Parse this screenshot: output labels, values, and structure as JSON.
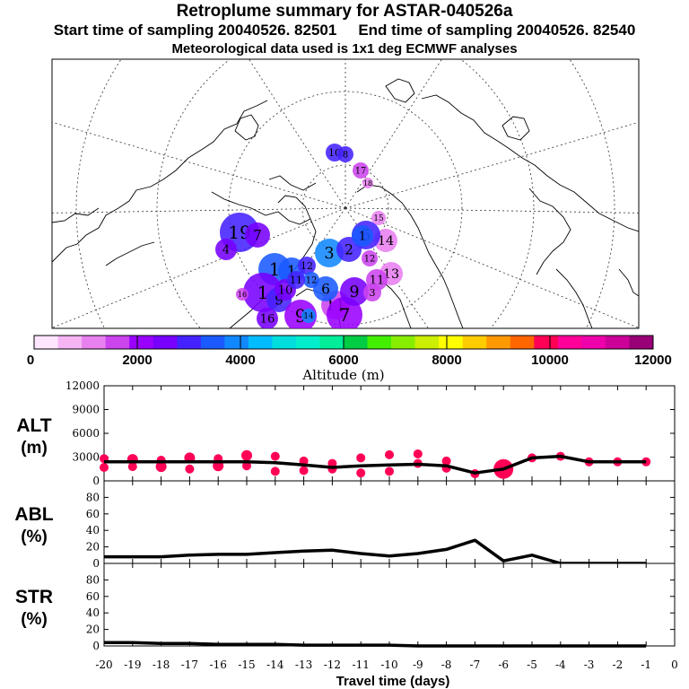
{
  "header": {
    "title": "Retroplume summary for ASTAR-040526a",
    "start_label": "Start time of sampling 20040526. 82501",
    "end_label": "End time of sampling 20040526. 82540",
    "met_label": "Meteorological data used is 1x1 deg ECMWF analyses"
  },
  "colorbar": {
    "label": "Altitude (m)",
    "tick_labels": [
      "0",
      "2000",
      "4000",
      "6000",
      "8000",
      "10000",
      "12000"
    ],
    "colors": [
      "#ffe6ff",
      "#f5b5f5",
      "#e880f0",
      "#cc44ee",
      "#9900ff",
      "#7700ff",
      "#4422ff",
      "#1a5aff",
      "#1188ff",
      "#00bbff",
      "#00dddd",
      "#00eecc",
      "#00ee99",
      "#00cc44",
      "#44ee00",
      "#88ee00",
      "#ccee00",
      "#ffff00",
      "#ffcc00",
      "#ff9900",
      "#ff6600",
      "#ff0055",
      "#ff0099",
      "#ee00aa",
      "#cc0099",
      "#990077"
    ]
  },
  "map": {
    "markers": [
      "19",
      "7",
      "4",
      "1",
      "1",
      "12",
      "1",
      "9",
      "10",
      "9",
      "16",
      "11",
      "6",
      "7",
      "3",
      "14",
      "13",
      "11",
      "12",
      "2",
      "9",
      "10",
      "15",
      "17",
      "18",
      "8",
      "5",
      "1",
      "16",
      "14",
      "3",
      "12",
      "11"
    ]
  },
  "chart_data": [
    {
      "type": "line",
      "name": "ALT",
      "ylabel": "ALT (m)",
      "ylabel_lines": [
        "ALT",
        "(m)"
      ],
      "ylim": [
        0,
        12000
      ],
      "y_ticks": [
        "0",
        "3000",
        "6000",
        "9000",
        "12000"
      ],
      "x": [
        -20,
        -19,
        -18,
        -17,
        -16,
        -15,
        -14,
        -13,
        -12,
        -11,
        -10,
        -9,
        -8,
        -7,
        -6,
        -5,
        -4,
        -3,
        -2,
        -1
      ],
      "values": [
        2400,
        2400,
        2400,
        2400,
        2400,
        2400,
        2300,
        2000,
        1700,
        1900,
        2000,
        2100,
        1900,
        1000,
        1500,
        2900,
        3100,
        2400,
        2400,
        2400
      ],
      "scatter": [
        {
          "x": -20,
          "y": 2800
        },
        {
          "x": -20,
          "y": 1700
        },
        {
          "x": -19,
          "y": 2700
        },
        {
          "x": -19,
          "y": 1800
        },
        {
          "x": -18,
          "y": 2600
        },
        {
          "x": -18,
          "y": 1800
        },
        {
          "x": -17,
          "y": 2900
        },
        {
          "x": -17,
          "y": 1500
        },
        {
          "x": -16,
          "y": 2800
        },
        {
          "x": -16,
          "y": 1900
        },
        {
          "x": -15,
          "y": 3200
        },
        {
          "x": -15,
          "y": 1900
        },
        {
          "x": -14,
          "y": 3100
        },
        {
          "x": -14,
          "y": 1200
        },
        {
          "x": -13,
          "y": 2500
        },
        {
          "x": -13,
          "y": 1300
        },
        {
          "x": -12,
          "y": 2200
        },
        {
          "x": -12,
          "y": 1500
        },
        {
          "x": -11,
          "y": 2900
        },
        {
          "x": -11,
          "y": 1000
        },
        {
          "x": -10,
          "y": 3300
        },
        {
          "x": -10,
          "y": 1200
        },
        {
          "x": -9,
          "y": 3400
        },
        {
          "x": -9,
          "y": 2200
        },
        {
          "x": -8,
          "y": 2500
        },
        {
          "x": -8,
          "y": 1600
        },
        {
          "x": -7,
          "y": 900
        },
        {
          "x": -6,
          "y": 1500
        },
        {
          "x": -5,
          "y": 2900
        },
        {
          "x": -4,
          "y": 3100
        },
        {
          "x": -3,
          "y": 2400
        },
        {
          "x": -2,
          "y": 2400
        },
        {
          "x": -1,
          "y": 2400
        }
      ]
    },
    {
      "type": "line",
      "name": "ABL",
      "ylabel": "ABL (%)",
      "ylabel_lines": [
        "ABL",
        "(%)"
      ],
      "ylim": [
        0,
        100
      ],
      "y_ticks": [
        "0",
        "20",
        "40",
        "60",
        "80"
      ],
      "x": [
        -20,
        -19,
        -18,
        -17,
        -16,
        -15,
        -14,
        -13,
        -12,
        -11,
        -10,
        -9,
        -8,
        -7,
        -6,
        -5,
        -4,
        -3,
        -2,
        -1
      ],
      "values": [
        8,
        8,
        8,
        10,
        11,
        11,
        13,
        15,
        16,
        12,
        9,
        12,
        17,
        28,
        3,
        10,
        0,
        0,
        0,
        0
      ]
    },
    {
      "type": "line",
      "name": "STR",
      "ylabel": "STR (%)",
      "ylabel_lines": [
        "STR",
        "(%)"
      ],
      "ylim": [
        0,
        100
      ],
      "y_ticks": [
        "0",
        "20",
        "40",
        "60",
        "80"
      ],
      "x": [
        -20,
        -19,
        -18,
        -17,
        -16,
        -15,
        -14,
        -13,
        -12,
        -11,
        -10,
        -9,
        -8,
        -7,
        -6,
        -5,
        -4,
        -3,
        -2,
        -1
      ],
      "values": [
        4,
        4,
        3,
        3,
        2,
        2,
        2,
        1,
        1,
        1,
        1,
        0,
        0,
        0,
        0,
        0,
        0,
        0,
        0,
        0
      ]
    }
  ],
  "xaxis": {
    "label": "Travel time (days)",
    "tick_labels": [
      "-20",
      "-19",
      "-18",
      "-17",
      "-16",
      "-15",
      "-14",
      "-13",
      "-12",
      "-11",
      "-10",
      "-9",
      "-8",
      "-7",
      "-6",
      "-5",
      "-4",
      "-3",
      "-2",
      "-1",
      "0"
    ]
  }
}
